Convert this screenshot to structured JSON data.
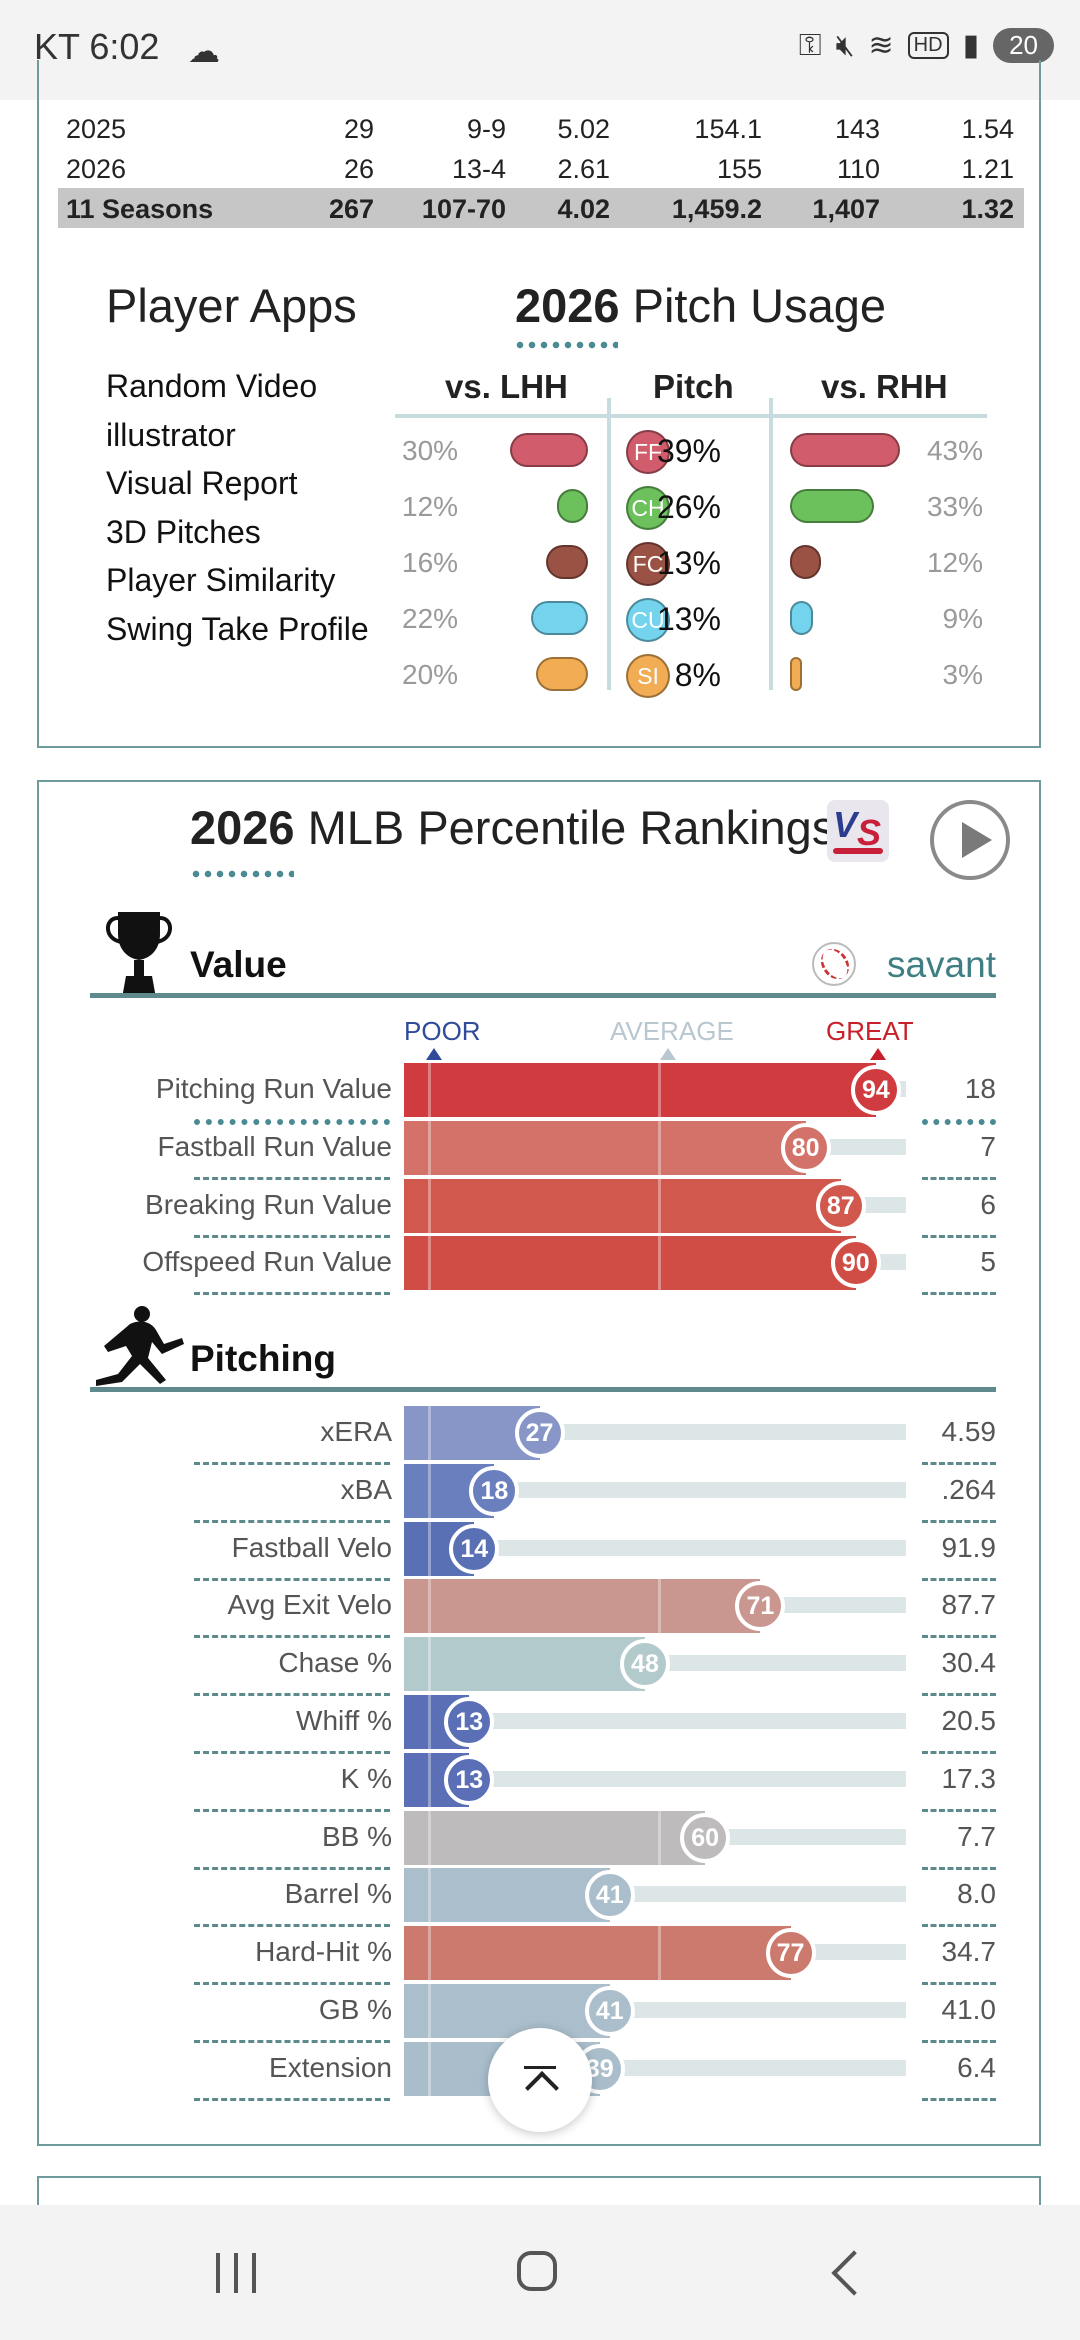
{
  "status_bar": {
    "time": "KT 6:02",
    "weather_icon": "partly-cloudy-night-icon",
    "icons": [
      "key-icon",
      "mute-icon",
      "wifi-6-icon",
      "hd-icon",
      "signal-icon"
    ],
    "hd_label": "HD",
    "battery": "20"
  },
  "career_table": {
    "rows": [
      {
        "season": "2025",
        "g": "29",
        "wl": "9-9",
        "era": "5.02",
        "ip": "154.1",
        "so": "143",
        "whip": "1.54"
      },
      {
        "season": "2026",
        "g": "26",
        "wl": "13-4",
        "era": "2.61",
        "ip": "155",
        "so": "110",
        "whip": "1.21"
      }
    ],
    "total": {
      "season": "11 Seasons",
      "g": "267",
      "wl": "107-70",
      "era": "4.02",
      "ip": "1,459.2",
      "so": "1,407",
      "whip": "1.32"
    }
  },
  "player_apps": {
    "title": "Player Apps",
    "items": [
      "Random Video",
      "illustrator",
      "Visual Report",
      "3D Pitches",
      "Player Similarity",
      "Swing Take Profile"
    ]
  },
  "pitch_usage": {
    "title_year": "2026",
    "title_text": " Pitch Usage",
    "headers": {
      "lhh": "vs. LHH",
      "pitch": "Pitch",
      "rhh": "vs. RHH"
    },
    "rows": [
      {
        "code": "FF",
        "lhh": "30%",
        "lhh_value": 30,
        "pitch": "39%",
        "rhh": "43%",
        "rhh_value": 43,
        "color": "#d05c6c"
      },
      {
        "code": "CH",
        "lhh": "12%",
        "lhh_value": 12,
        "pitch": "26%",
        "rhh": "33%",
        "rhh_value": 33,
        "color": "#6cc15c"
      },
      {
        "code": "FC",
        "lhh": "16%",
        "lhh_value": 16,
        "pitch": "13%",
        "rhh": "12%",
        "rhh_value": 12,
        "color": "#9a5244"
      },
      {
        "code": "CU",
        "lhh": "22%",
        "lhh_value": 22,
        "pitch": "13%",
        "rhh": "9%",
        "rhh_value": 9,
        "color": "#74d4ee"
      },
      {
        "code": "SI",
        "lhh": "20%",
        "lhh_value": 20,
        "pitch": "8%",
        "rhh": "3%",
        "rhh_value": 3,
        "color": "#f2ac54"
      }
    ]
  },
  "percentile": {
    "title_year": "2026",
    "title_text": " MLB Percentile Rankings",
    "vs_logo": "VS",
    "play_icon": "play-icon",
    "scale": {
      "poor": "POOR",
      "average": "AVERAGE",
      "great": "GREAT"
    },
    "colors": {
      "poor": "#2f4b9a",
      "average": "#b9c7d0",
      "great": "#c8202a"
    },
    "value_section": {
      "label": "Value",
      "icon": "trophy-icon",
      "brand": "savant",
      "brand_icon": "baseball-icon",
      "rows": [
        {
          "label": "Pitching Run Value",
          "percentile": 94,
          "value": "18",
          "color": "#cf3b3e"
        },
        {
          "label": "Fastball Run Value",
          "percentile": 80,
          "value": "7",
          "color": "#d27269"
        },
        {
          "label": "Breaking Run Value",
          "percentile": 87,
          "value": "6",
          "color": "#d0584d"
        },
        {
          "label": "Offspeed Run Value",
          "percentile": 90,
          "value": "5",
          "color": "#cf4d45"
        }
      ]
    },
    "pitching_section": {
      "label": "Pitching",
      "icon": "pitcher-icon",
      "rows": [
        {
          "label": "xERA",
          "percentile": 27,
          "value": "4.59",
          "color": "#8796c6"
        },
        {
          "label": "xBA",
          "percentile": 18,
          "value": ".264",
          "color": "#6a7fbd"
        },
        {
          "label": "Fastball Velo",
          "percentile": 14,
          "value": "91.9",
          "color": "#5a70b5"
        },
        {
          "label": "Avg Exit Velo",
          "percentile": 71,
          "value": "87.7",
          "color": "#c9978f"
        },
        {
          "label": "Chase %",
          "percentile": 48,
          "value": "30.4",
          "color": "#b3cacd"
        },
        {
          "label": "Whiff %",
          "percentile": 13,
          "value": "20.5",
          "color": "#5a6fb6"
        },
        {
          "label": "K %",
          "percentile": 13,
          "value": "17.3",
          "color": "#5a6fb6"
        },
        {
          "label": "BB %",
          "percentile": 60,
          "value": "7.7",
          "color": "#bdbbbb"
        },
        {
          "label": "Barrel %",
          "percentile": 41,
          "value": "8.0",
          "color": "#aabecb"
        },
        {
          "label": "Hard-Hit %",
          "percentile": 77,
          "value": "34.7",
          "color": "#cc7a6e"
        },
        {
          "label": "GB %",
          "percentile": 41,
          "value": "41.0",
          "color": "#aabecb"
        },
        {
          "label": "Extension",
          "percentile": 39,
          "value": "6.4",
          "color": "#a9bdcb"
        }
      ]
    }
  },
  "scroll_top_icon": "scroll-to-top-icon",
  "nav": {
    "recent": "recent-apps-icon",
    "home": "home-icon",
    "back": "back-icon"
  }
}
